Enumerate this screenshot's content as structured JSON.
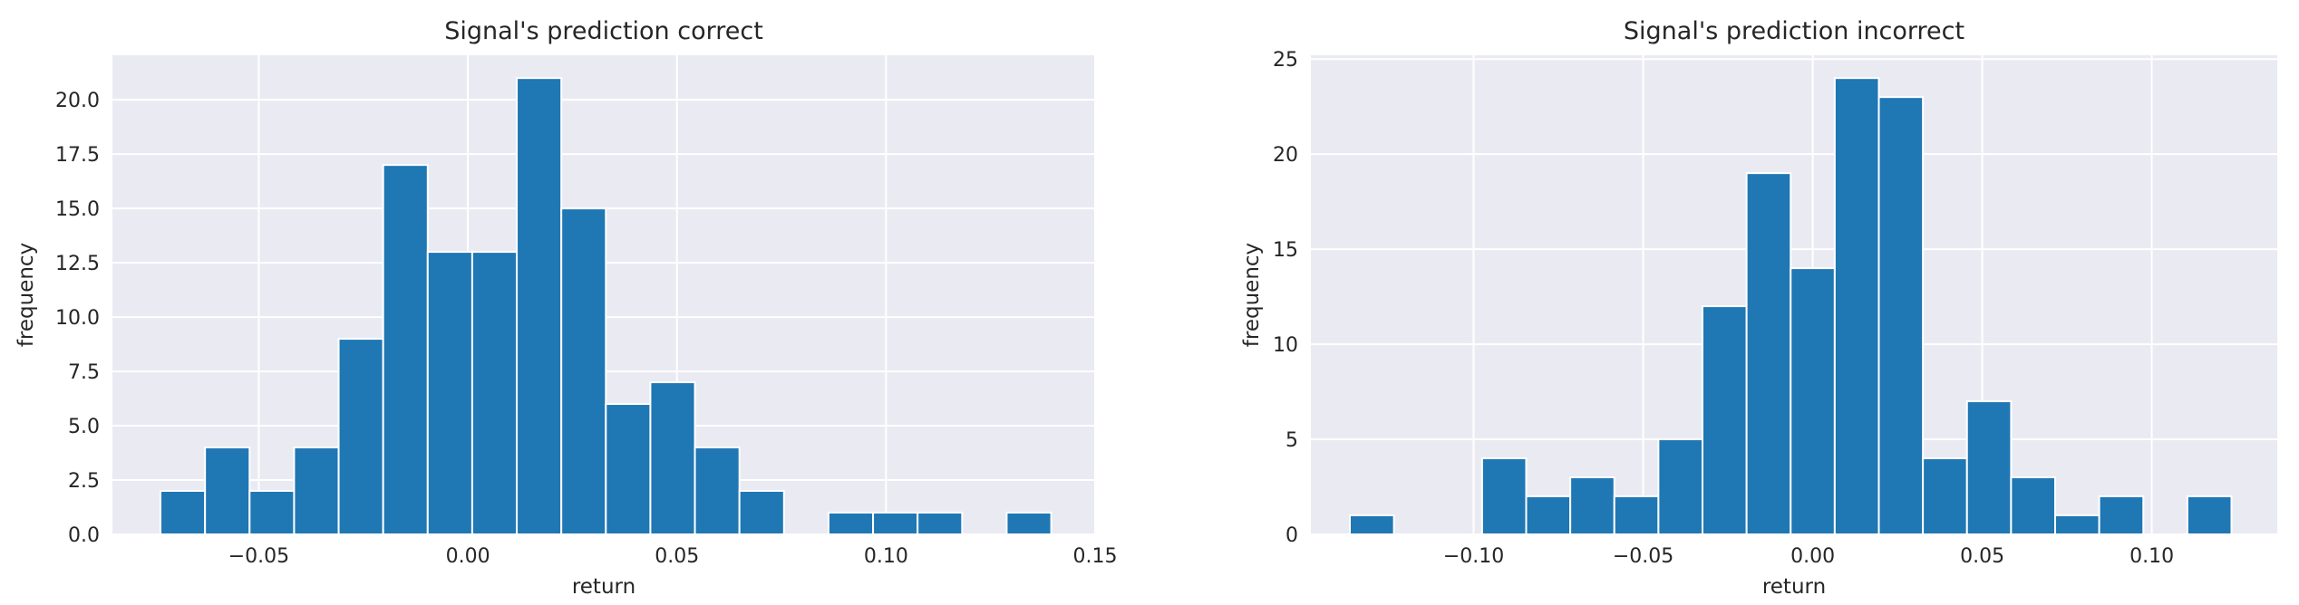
{
  "chart_data": [
    {
      "type": "bar",
      "title": "Signal's prediction correct",
      "xlabel": "return",
      "ylabel": "frequency",
      "xlim": [
        -0.085,
        0.15
      ],
      "ylim": [
        0,
        22.05
      ],
      "xticks": [
        -0.05,
        0.0,
        0.05,
        0.1,
        0.15
      ],
      "xtick_labels": [
        "−0.05",
        "0.00",
        "0.05",
        "0.10",
        "0.15"
      ],
      "yticks": [
        0,
        2.5,
        5,
        7.5,
        10,
        12.5,
        15,
        17.5,
        20
      ],
      "ytick_labels": [
        "0.0",
        "2.5",
        "5.0",
        "7.5",
        "10.0",
        "12.5",
        "15.0",
        "17.5",
        "20.0"
      ],
      "grid": true,
      "bin_start": -0.0735,
      "bin_width": 0.01065,
      "values": [
        2,
        4,
        2,
        4,
        9,
        17,
        13,
        13,
        21,
        15,
        6,
        7,
        4,
        2,
        0,
        1,
        1,
        1,
        0,
        1
      ],
      "color": "#1f77b4",
      "background": "#eaeaf2"
    },
    {
      "type": "bar",
      "title": "Signal's prediction incorrect",
      "xlabel": "return",
      "ylabel": "frequency",
      "xlim": [
        -0.148,
        0.137
      ],
      "ylim": [
        0,
        25.2
      ],
      "xticks": [
        -0.1,
        -0.05,
        0.0,
        0.05,
        0.1
      ],
      "xtick_labels": [
        "−0.10",
        "−0.05",
        "0.00",
        "0.05",
        "0.10"
      ],
      "yticks": [
        0,
        5,
        10,
        15,
        20,
        25
      ],
      "ytick_labels": [
        "0",
        "5",
        "10",
        "15",
        "20",
        "25"
      ],
      "grid": true,
      "bin_start": -0.1365,
      "bin_width": 0.013,
      "values": [
        1,
        0,
        0,
        4,
        2,
        3,
        2,
        5,
        12,
        19,
        14,
        24,
        23,
        4,
        7,
        3,
        1,
        2,
        0,
        2
      ],
      "color": "#1f77b4",
      "background": "#eaeaf2"
    }
  ]
}
